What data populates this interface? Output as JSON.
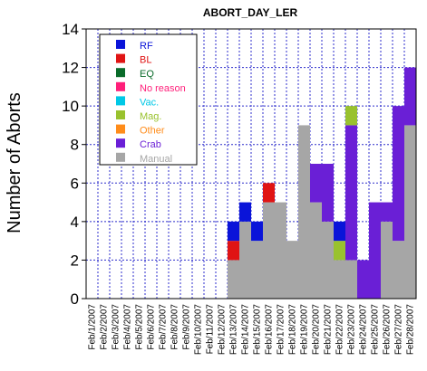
{
  "chart_data": {
    "type": "bar",
    "stacked": true,
    "title": "ABORT_DAY_LER",
    "xlabel": "",
    "ylabel": "Number of Aborts",
    "ylim": [
      0,
      14
    ],
    "yticks": [
      "0",
      "2",
      "4",
      "6",
      "8",
      "10",
      "12",
      "14"
    ],
    "grid": true,
    "legend_position": "top-left",
    "categories": [
      "Feb/1/2007",
      "Feb/2/2007",
      "Feb/3/2007",
      "Feb/4/2007",
      "Feb/5/2007",
      "Feb/6/2007",
      "Feb/7/2007",
      "Feb/8/2007",
      "Feb/9/2007",
      "Feb/10/2007",
      "Feb/11/2007",
      "Feb/12/2007",
      "Feb/13/2007",
      "Feb/14/2007",
      "Feb/15/2007",
      "Feb/16/2007",
      "Feb/17/2007",
      "Feb/18/2007",
      "Feb/19/2007",
      "Feb/20/2007",
      "Feb/21/2007",
      "Feb/22/2007",
      "Feb/23/2007",
      "Feb/24/2007",
      "Feb/25/2007",
      "Feb/26/2007",
      "Feb/27/2007",
      "Feb/28/2007"
    ],
    "series": [
      {
        "name": "Manual",
        "color": "#a6a6a6",
        "values": [
          0,
          0,
          0,
          0,
          0,
          0,
          0,
          0,
          0,
          0,
          0,
          0,
          2,
          4,
          3,
          5,
          5,
          3,
          9,
          5,
          4,
          2,
          2,
          0,
          0,
          4,
          3,
          9
        ]
      },
      {
        "name": "Crab",
        "color": "#6a1fd6",
        "values": [
          0,
          0,
          0,
          0,
          0,
          0,
          0,
          0,
          0,
          0,
          0,
          0,
          0,
          0,
          0,
          0,
          0,
          0,
          0,
          2,
          3,
          0,
          7,
          2,
          5,
          1,
          7,
          3
        ]
      },
      {
        "name": "Other",
        "color": "#ff8c1a",
        "values": [
          0,
          0,
          0,
          0,
          0,
          0,
          0,
          0,
          0,
          0,
          0,
          0,
          0,
          0,
          0,
          0,
          0,
          0,
          0,
          0,
          0,
          0,
          0,
          0,
          0,
          0,
          0,
          0
        ]
      },
      {
        "name": "Mag.",
        "color": "#99c22e",
        "values": [
          0,
          0,
          0,
          0,
          0,
          0,
          0,
          0,
          0,
          0,
          0,
          0,
          0,
          0,
          0,
          0,
          0,
          0,
          0,
          0,
          0,
          1,
          1,
          0,
          0,
          0,
          0,
          0
        ]
      },
      {
        "name": "Vac.",
        "color": "#00c8e6",
        "values": [
          0,
          0,
          0,
          0,
          0,
          0,
          0,
          0,
          0,
          0,
          0,
          0,
          0,
          0,
          0,
          0,
          0,
          0,
          0,
          0,
          0,
          0,
          0,
          0,
          0,
          0,
          0,
          0
        ]
      },
      {
        "name": "No reason",
        "color": "#ff1f7a",
        "values": [
          0,
          0,
          0,
          0,
          0,
          0,
          0,
          0,
          0,
          0,
          0,
          0,
          0,
          0,
          0,
          0,
          0,
          0,
          0,
          0,
          0,
          0,
          0,
          0,
          0,
          0,
          0,
          0
        ]
      },
      {
        "name": "EQ",
        "color": "#0a6b2a",
        "values": [
          0,
          0,
          0,
          0,
          0,
          0,
          0,
          0,
          0,
          0,
          0,
          0,
          0,
          0,
          0,
          0,
          0,
          0,
          0,
          0,
          0,
          0,
          0,
          0,
          0,
          0,
          0,
          0
        ]
      },
      {
        "name": "BL",
        "color": "#e01414",
        "values": [
          0,
          0,
          0,
          0,
          0,
          0,
          0,
          0,
          0,
          0,
          0,
          0,
          1,
          0,
          0,
          1,
          0,
          0,
          0,
          0,
          0,
          0,
          0,
          0,
          0,
          0,
          0,
          0
        ]
      },
      {
        "name": "RF",
        "color": "#0a14d9",
        "values": [
          0,
          0,
          0,
          0,
          0,
          0,
          0,
          0,
          0,
          0,
          0,
          0,
          1,
          1,
          1,
          0,
          0,
          0,
          0,
          0,
          0,
          1,
          0,
          0,
          0,
          0,
          0,
          0
        ]
      }
    ],
    "legend_order": [
      "RF",
      "BL",
      "EQ",
      "No reason",
      "Vac.",
      "Mag.",
      "Other",
      "Crab",
      "Manual"
    ],
    "legend_text_colors": {
      "RF": "#0a14d9",
      "BL": "#e01414",
      "EQ": "#0a6b2a",
      "No reason": "#ff1f7a",
      "Vac.": "#00c8e6",
      "Mag.": "#99c22e",
      "Other": "#ff8c1a",
      "Crab": "#6a1fd6",
      "Manual": "#a6a6a6"
    }
  }
}
